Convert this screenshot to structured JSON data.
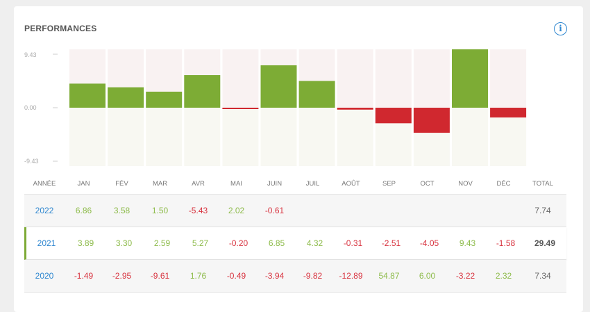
{
  "title": "PERFORMANCES",
  "info_icon": "info-circle-icon",
  "colors": {
    "positive": "#7dac35",
    "negative": "#d0282f",
    "year": "#2f87d0",
    "selected_border": "#7daa35"
  },
  "chart_data": {
    "type": "bar",
    "series_year": "2021",
    "categories": [
      "JAN",
      "FÉV",
      "MAR",
      "AVR",
      "MAI",
      "JUIN",
      "JUIL",
      "AOÛT",
      "SEP",
      "OCT",
      "NOV",
      "DÉC"
    ],
    "values": [
      3.89,
      3.3,
      2.59,
      5.27,
      -0.2,
      6.85,
      4.32,
      -0.31,
      -2.51,
      -4.05,
      9.43,
      -1.58
    ],
    "ylim": [
      -9.43,
      9.43
    ],
    "yticks": [
      "9.43",
      "0.00",
      "-9.43"
    ]
  },
  "table": {
    "headers": [
      "ANNÉE",
      "JAN",
      "FÉV",
      "MAR",
      "AVR",
      "MAI",
      "JUIN",
      "JUIL",
      "AOÛT",
      "SEP",
      "OCT",
      "NOV",
      "DÉC",
      "TOTAL"
    ],
    "rows": [
      {
        "year": "2022",
        "values": [
          "6.86",
          "3.58",
          "1.50",
          "-5.43",
          "2.02",
          "-0.61",
          "",
          "",
          "",
          "",
          "",
          ""
        ],
        "total": "7.74",
        "selected": false
      },
      {
        "year": "2021",
        "values": [
          "3.89",
          "3.30",
          "2.59",
          "5.27",
          "-0.20",
          "6.85",
          "4.32",
          "-0.31",
          "-2.51",
          "-4.05",
          "9.43",
          "-1.58"
        ],
        "total": "29.49",
        "selected": true
      },
      {
        "year": "2020",
        "values": [
          "-1.49",
          "-2.95",
          "-9.61",
          "1.76",
          "-0.49",
          "-3.94",
          "-9.82",
          "-12.89",
          "54.87",
          "6.00",
          "-3.22",
          "2.32"
        ],
        "total": "7.34",
        "selected": false
      }
    ]
  }
}
